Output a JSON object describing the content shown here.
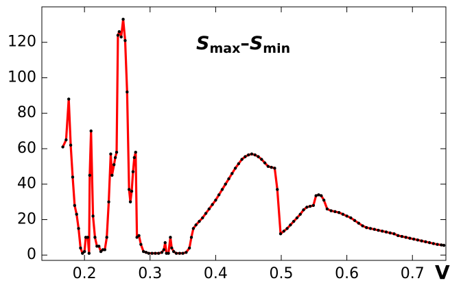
{
  "chart_data": {
    "type": "line",
    "title": [
      "S",
      "max",
      "–",
      "S",
      "min"
    ],
    "x_label": "V",
    "x": [
      0.167,
      0.172,
      0.176,
      0.179,
      0.182,
      0.185,
      0.188,
      0.191,
      0.194,
      0.197,
      0.2,
      0.202,
      0.205,
      0.207,
      0.208,
      0.21,
      0.213,
      0.216,
      0.219,
      0.222,
      0.225,
      0.228,
      0.231,
      0.234,
      0.237,
      0.24,
      0.242,
      0.245,
      0.247,
      0.249,
      0.251,
      0.253,
      0.256,
      0.259,
      0.262,
      0.265,
      0.268,
      0.27,
      0.272,
      0.274,
      0.276,
      0.278,
      0.28,
      0.283,
      0.286,
      0.29,
      0.294,
      0.298,
      0.303,
      0.308,
      0.313,
      0.318,
      0.321,
      0.323,
      0.325,
      0.328,
      0.331,
      0.333,
      0.336,
      0.34,
      0.345,
      0.35,
      0.355,
      0.36,
      0.363,
      0.366,
      0.37,
      0.375,
      0.38,
      0.385,
      0.39,
      0.395,
      0.4,
      0.405,
      0.41,
      0.415,
      0.42,
      0.425,
      0.43,
      0.435,
      0.44,
      0.445,
      0.45,
      0.455,
      0.46,
      0.465,
      0.47,
      0.475,
      0.48,
      0.485,
      0.49,
      0.494,
      0.499,
      0.504,
      0.509,
      0.514,
      0.519,
      0.524,
      0.529,
      0.534,
      0.539,
      0.544,
      0.549,
      0.553,
      0.557,
      0.561,
      0.565,
      0.57,
      0.576,
      0.582,
      0.588,
      0.594,
      0.6,
      0.606,
      0.612,
      0.618,
      0.624,
      0.63,
      0.636,
      0.642,
      0.648,
      0.654,
      0.66,
      0.666,
      0.672,
      0.678,
      0.684,
      0.69,
      0.696,
      0.702,
      0.708,
      0.714,
      0.72,
      0.726,
      0.732,
      0.738,
      0.744,
      0.748
    ],
    "series": [
      {
        "color": "#ff0000",
        "marker_color": "#000000",
        "values": [
          61,
          65,
          88,
          62,
          44,
          28,
          23,
          15,
          4,
          1,
          2,
          10,
          10,
          1,
          45,
          70,
          22,
          10,
          5,
          5,
          2,
          3,
          3,
          10,
          30,
          57,
          45,
          51,
          55,
          58,
          124,
          126,
          123,
          133,
          121,
          92,
          37,
          30,
          36,
          47,
          55,
          58,
          10,
          11,
          6,
          2,
          1.5,
          1,
          1,
          1,
          1,
          1.5,
          3,
          7,
          1,
          1,
          10,
          4,
          2,
          1,
          1,
          1,
          1.5,
          4,
          10,
          15,
          17,
          19,
          21,
          23.5,
          26,
          28.5,
          31,
          34,
          37,
          40,
          43,
          46,
          49,
          51.5,
          54,
          55.5,
          56.5,
          57,
          56.5,
          55.5,
          54,
          52,
          50,
          49.5,
          49,
          37,
          12,
          13.5,
          15,
          17,
          19,
          21,
          23,
          25.5,
          27,
          27.5,
          28,
          33.5,
          34,
          33.5,
          31,
          26,
          25,
          24.5,
          24,
          23,
          22,
          21,
          19.5,
          18,
          16.5,
          15.5,
          15,
          14.5,
          14,
          13.5,
          13,
          12.5,
          12,
          11,
          10.5,
          10,
          9.5,
          9,
          8.5,
          8,
          7.5,
          7,
          6.5,
          6,
          5.7,
          5.5
        ]
      }
    ],
    "xlim": [
      0.135,
      0.751
    ],
    "xticks": [
      0.2,
      0.3,
      0.4,
      0.5,
      0.6,
      0.7
    ],
    "ylim": [
      -3,
      140
    ],
    "yticks": [
      0,
      20,
      40,
      60,
      80,
      100,
      120
    ]
  }
}
